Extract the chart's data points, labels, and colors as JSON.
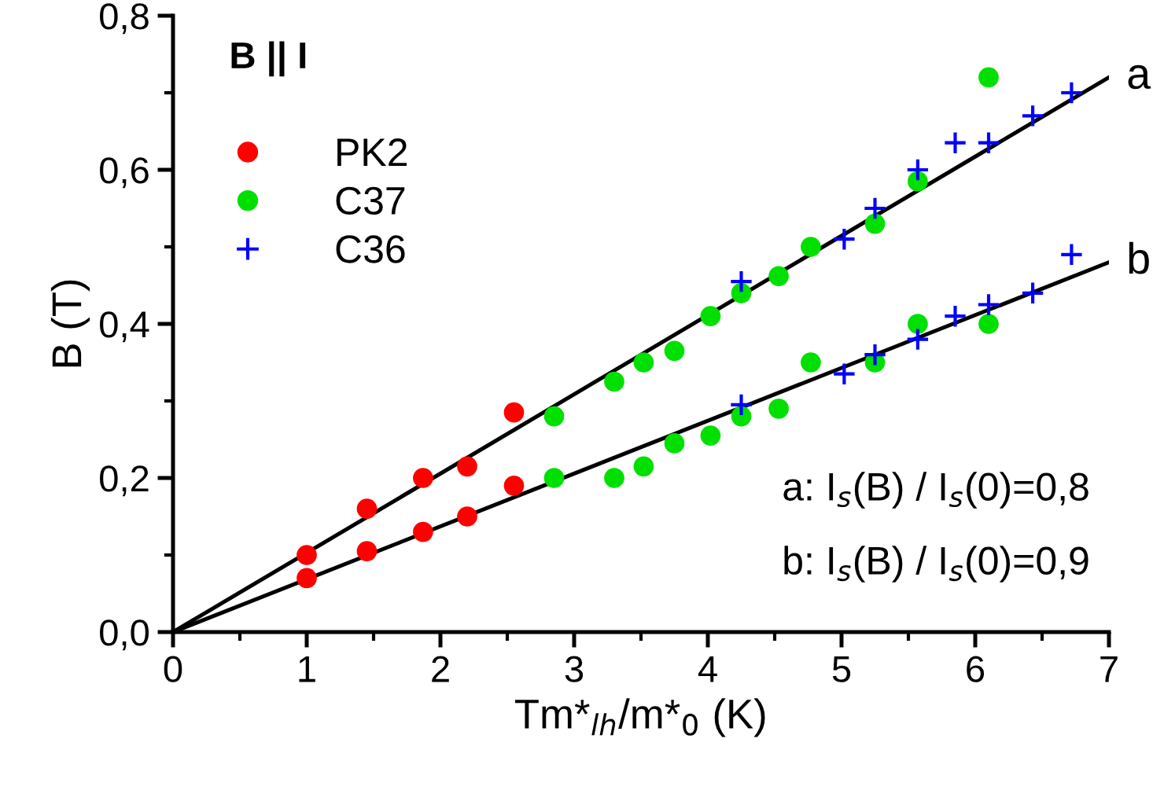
{
  "chart_data": {
    "type": "scatter",
    "xlabel": "Tm*$_{lh}$/m*$_{0}$ (K)",
    "ylabel": "B (T)",
    "xlim": [
      0,
      7
    ],
    "ylim": [
      0,
      0.8
    ],
    "xticks": [
      0,
      {
        "value": 0.5,
        "label": null
      },
      1,
      {
        "value": 1.5,
        "label": null
      },
      2,
      {
        "value": 2.5,
        "label": null
      },
      3,
      {
        "value": 3.5,
        "label": null
      },
      4,
      {
        "value": 4.5,
        "label": null
      },
      5,
      {
        "value": 5.5,
        "label": null
      },
      6,
      {
        "value": 6.5,
        "label": null
      },
      7
    ],
    "yticks": [
      {
        "value": 0,
        "label": "0,0"
      },
      {
        "value": 0.1,
        "label": null
      },
      {
        "value": 0.2,
        "label": "0,2"
      },
      {
        "value": 0.3,
        "label": null
      },
      {
        "value": 0.4,
        "label": "0,4"
      },
      {
        "value": 0.5,
        "label": null
      },
      {
        "value": 0.6,
        "label": "0,6"
      },
      {
        "value": 0.7,
        "label": null
      },
      {
        "value": 0.8,
        "label": "0,8"
      }
    ],
    "grid": false,
    "legend": "top left",
    "series": [
      {
        "name": "PK2",
        "color": "#ff0000",
        "marker": "circle",
        "x": [
          1.0,
          1.0,
          1.45,
          1.45,
          1.87,
          1.87,
          2.2,
          2.2,
          2.55,
          2.55
        ],
        "values": [
          0.1,
          0.07,
          0.16,
          0.105,
          0.2,
          0.13,
          0.215,
          0.15,
          0.285,
          0.19
        ]
      },
      {
        "name": "C37",
        "color": "#00e000",
        "marker": "circle",
        "x": [
          2.85,
          2.85,
          3.3,
          3.3,
          3.52,
          3.52,
          3.75,
          3.75,
          4.02,
          4.02,
          4.25,
          4.25,
          4.53,
          4.53,
          4.77,
          4.77,
          5.25,
          5.25,
          5.57,
          5.57,
          6.1,
          6.1
        ],
        "values": [
          0.28,
          0.2,
          0.325,
          0.2,
          0.35,
          0.215,
          0.365,
          0.245,
          0.41,
          0.255,
          0.44,
          0.28,
          0.462,
          0.29,
          0.5,
          0.35,
          0.53,
          0.35,
          0.585,
          0.4,
          0.72,
          0.4
        ]
      },
      {
        "name": "C36",
        "color": "#0000ff",
        "marker": "cross",
        "x": [
          4.25,
          4.25,
          5.02,
          5.02,
          5.25,
          5.25,
          5.57,
          5.57,
          5.85,
          5.85,
          6.1,
          6.1,
          6.43,
          6.43,
          6.72,
          6.72
        ],
        "values": [
          0.455,
          0.295,
          0.51,
          0.335,
          0.55,
          0.36,
          0.6,
          0.38,
          0.635,
          0.41,
          0.635,
          0.425,
          0.67,
          0.44,
          0.7,
          0.49
        ]
      },
      {
        "type": "line",
        "color": "#000000",
        "x": [
          0,
          7
        ],
        "values": [
          0,
          0.72
        ]
      },
      {
        "type": "line",
        "color": "#000000",
        "x": [
          0,
          7
        ],
        "values": [
          0,
          0.48
        ]
      }
    ],
    "annotations": [
      {
        "text": "a",
        "x": 7,
        "y": 0.72
      },
      {
        "text": "b",
        "x": 7,
        "y": 0.48
      },
      "B || I",
      "a: I$_{s}$(B) / I$_{s}$(0)=0,8",
      "b: I$_{s}$(B) / I$_{s}$(0)=0,9"
    ]
  }
}
